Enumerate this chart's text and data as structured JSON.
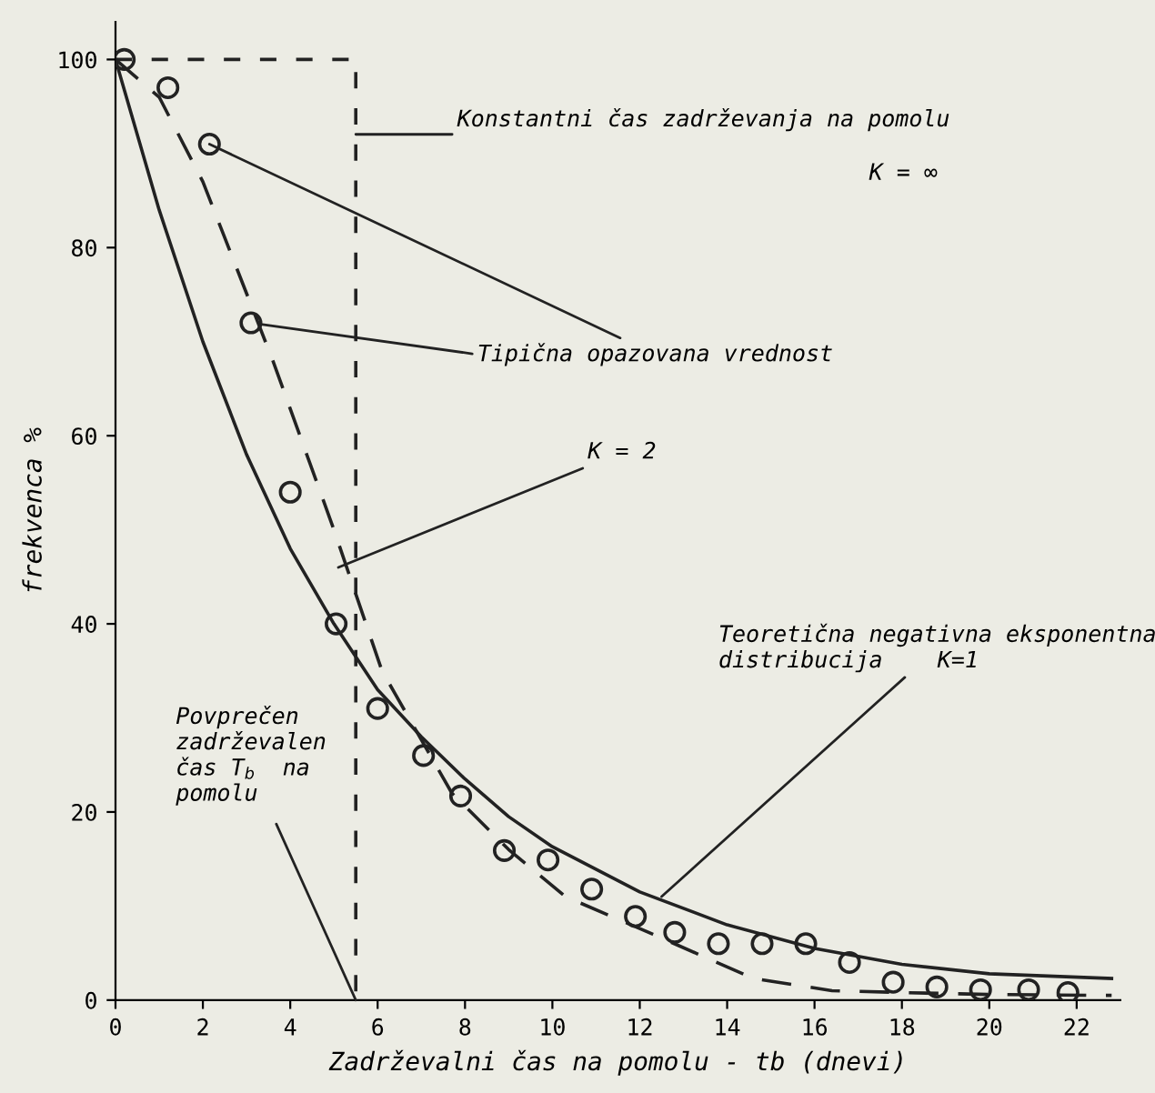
{
  "chart_data": {
    "type": "line",
    "xlabel": "Zadrževalni čas na pomolu - tb (dnevi)",
    "ylabel": "frekvenca %",
    "xlim": [
      0,
      23
    ],
    "ylim": [
      0,
      104
    ],
    "xticks": [
      0,
      2,
      4,
      6,
      8,
      10,
      12,
      14,
      16,
      18,
      20,
      22
    ],
    "yticks": [
      0,
      20,
      40,
      60,
      80,
      100
    ],
    "grid": false,
    "legend": false,
    "series": [
      {
        "line_style": "dashed",
        "color": "#222222",
        "x": [
          0,
          5.5,
          5.5
        ],
        "values": [
          100,
          100,
          0
        ]
      },
      {
        "line_style": "solid",
        "color": "#222222",
        "x": [
          0,
          1,
          2,
          3,
          4,
          5,
          6,
          7,
          8,
          9,
          10,
          12,
          14,
          16,
          18,
          20,
          22.8
        ],
        "values": [
          100,
          84,
          70,
          58,
          48,
          40,
          33,
          28,
          23.5,
          19.5,
          16.3,
          11.5,
          8,
          5.5,
          3.8,
          2.8,
          2.3
        ]
      },
      {
        "line_style": "dashed",
        "color": "#222222",
        "x": [
          0,
          1,
          2,
          3.6,
          5,
          6.1,
          7.7,
          9,
          10.3,
          12.3,
          14.6,
          16.4,
          18,
          20,
          22.8
        ],
        "values": [
          100,
          96,
          87,
          68,
          50,
          35,
          22,
          16,
          11,
          7,
          2.3,
          1,
          0.8,
          0.6,
          0.5
        ]
      },
      {
        "type": "scatter",
        "marker": "circle",
        "color": "#222222",
        "x": [
          0.2,
          1.2,
          2.15,
          3.1,
          4.0,
          5.05,
          6.0,
          7.05,
          7.9,
          8.9,
          9.9,
          10.9,
          11.9,
          12.8,
          13.8,
          14.8,
          15.8,
          16.8,
          17.8,
          18.8,
          19.8,
          20.9,
          21.8
        ],
        "values": [
          100,
          97,
          91,
          72,
          54,
          40,
          31,
          26,
          21.7,
          15.9,
          14.9,
          11.8,
          8.9,
          7.2,
          6,
          6,
          6,
          4,
          1.9,
          1.4,
          1.1,
          1.1,
          0.8
        ]
      }
    ],
    "annotations": [
      "Konstantni čas zadrževanja na pomolu",
      "K = ∞",
      {
        "text": "Tipična opazovana vrednost",
        "x": 2.15,
        "y": 91
      },
      {
        "text": "K = 2",
        "x": 5.1,
        "y": 46
      },
      {
        "text": "Teoretična negativna eksponentna\ndistribucija    K=1",
        "x": 12.5,
        "y": 11
      },
      "Povprečen\nzadrževalen\nčas T$_{b}$  na\npomolu"
    ]
  }
}
